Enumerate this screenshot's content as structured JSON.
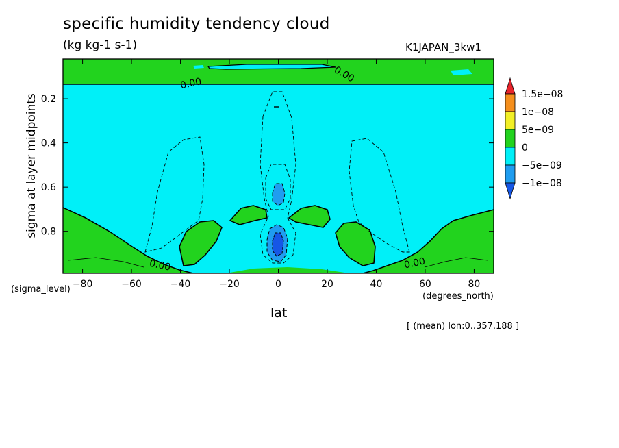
{
  "chart_data": {
    "type": "heatmap",
    "title": "specific humidity tendency cloud",
    "units": "(kg kg-1 s-1)",
    "run_id": "K1JAPAN_3kw1",
    "xlabel": "lat",
    "x_units": "(degrees_north)",
    "ylabel": "sigma at layer midpoints",
    "y_units": "(sigma_level)",
    "note": "[ (mean) lon:0..357.188 ]",
    "xlim": [
      -88,
      88
    ],
    "ylim": [
      0.99,
      0.02
    ],
    "x_ticks": [
      -80,
      -60,
      -40,
      -20,
      0,
      20,
      40,
      60,
      80
    ],
    "y_ticks": [
      0.2,
      0.4,
      0.6,
      0.8
    ],
    "colorbar": {
      "levels": [
        "1.5e-08",
        "1e-08",
        "5e-09",
        "0",
        "-5e-09",
        "-1e-08"
      ],
      "colors": [
        "#e8242b",
        "#f58f1d",
        "#f2ef26",
        "#22d31e",
        "#00f0f8",
        "#1f9df0",
        "#1657e6"
      ]
    },
    "contour_labels": [
      "0.00",
      "0.00",
      "0.00",
      "0.00"
    ],
    "colors": {
      "positive_fill": "#22d31e",
      "zero_to_neg_fill": "#00f0f8",
      "neg5_fill": "#1f9df0",
      "neg10_fill": "#1657e6"
    }
  }
}
